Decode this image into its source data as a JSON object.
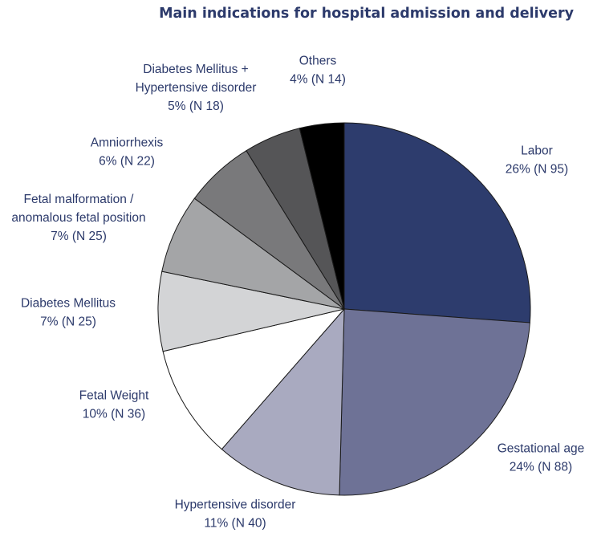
{
  "chart_data": {
    "type": "pie",
    "title": "Main indications for hospital admission and delivery",
    "slices": [
      {
        "name": "Labor",
        "percent": 26,
        "count": 95,
        "label_lines": [
          "Labor",
          "26% (N 95)"
        ],
        "color": "#2d3c6d"
      },
      {
        "name": "Gestational age",
        "percent": 24,
        "count": 88,
        "label_lines": [
          "Gestational age",
          "24% (N 88)"
        ],
        "color": "#6e7296"
      },
      {
        "name": "Hypertensive disorder",
        "percent": 11,
        "count": 40,
        "label_lines": [
          "Hypertensive disorder",
          "11% (N 40)"
        ],
        "color": "#a9aac0"
      },
      {
        "name": "Fetal Weight",
        "percent": 10,
        "count": 36,
        "label_lines": [
          "Fetal Weight",
          "10% (N 36)"
        ],
        "color": "#ffffff"
      },
      {
        "name": "Diabetes Mellitus",
        "percent": 7,
        "count": 25,
        "label_lines": [
          "Diabetes Mellitus",
          "7% (N 25)"
        ],
        "color": "#d3d4d6"
      },
      {
        "name": "Fetal malformation / anomalous fetal position",
        "percent": 7,
        "count": 25,
        "label_lines": [
          "Fetal malformation /",
          "anomalous fetal position",
          "7% (N 25)"
        ],
        "color": "#a4a5a7"
      },
      {
        "name": "Amniorrhexis",
        "percent": 6,
        "count": 22,
        "label_lines": [
          "Amniorrhexis",
          "6% (N 22)"
        ],
        "color": "#79797b"
      },
      {
        "name": "Diabetes Mellitus + Hypertensive disorder",
        "percent": 5,
        "count": 18,
        "label_lines": [
          "Diabetes Mellitus +",
          "Hypertensive disorder",
          "5% (N 18)"
        ],
        "color": "#555557"
      },
      {
        "name": "Others",
        "percent": 4,
        "count": 14,
        "label_lines": [
          "Others",
          "4% (N 14)"
        ],
        "color": "#000000"
      }
    ]
  }
}
